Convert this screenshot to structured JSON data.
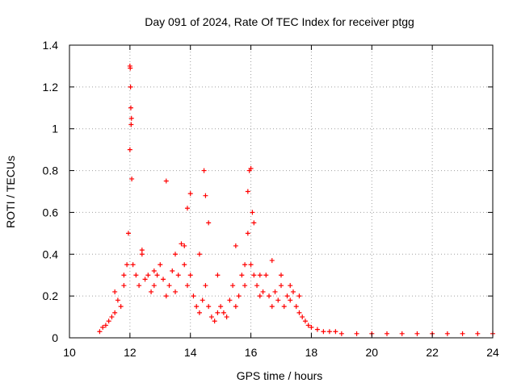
{
  "chart_data": {
    "type": "scatter",
    "title": "Day 091 of 2024, Rate Of TEC Index for receiver ptgg",
    "xlabel": "GPS time / hours",
    "ylabel": "ROTI / TECUs",
    "xlim": [
      10,
      24
    ],
    "ylim": [
      0,
      1.4
    ],
    "x_ticks": [
      "10",
      "12",
      "14",
      "16",
      "18",
      "20",
      "22",
      "24"
    ],
    "y_ticks": [
      "0",
      "0.2",
      "0.4",
      "0.6",
      "0.8",
      "1",
      "1.2",
      "1.4"
    ],
    "grid": true,
    "marker": "+",
    "series": [
      {
        "name": "ROTI",
        "color": "#ff0000",
        "x": [
          11.0,
          11.1,
          11.2,
          11.3,
          11.4,
          11.5,
          11.6,
          11.7,
          11.8,
          11.9,
          11.95,
          12.0,
          12.02,
          12.05,
          12.1,
          12.2,
          12.3,
          12.4,
          12.5,
          12.6,
          12.7,
          12.8,
          12.9,
          13.0,
          13.1,
          13.2,
          13.3,
          13.4,
          13.5,
          13.6,
          13.7,
          13.8,
          13.9,
          14.0,
          14.1,
          14.2,
          14.3,
          14.4,
          14.5,
          14.6,
          14.7,
          14.8,
          14.9,
          15.0,
          15.1,
          15.2,
          15.3,
          15.4,
          15.5,
          15.6,
          15.7,
          15.8,
          15.9,
          16.0,
          16.1,
          16.2,
          16.3,
          16.4,
          16.5,
          16.6,
          16.7,
          16.8,
          16.9,
          17.0,
          17.1,
          17.2,
          17.3,
          17.4,
          17.5,
          17.6,
          17.7,
          17.8,
          17.9,
          18.0,
          18.2,
          18.4,
          18.6,
          18.8,
          19.0,
          19.5,
          20.0,
          20.5,
          21.0,
          21.5,
          22.0,
          22.5,
          23.0,
          23.5,
          24.0,
          11.5,
          11.8,
          12.0,
          12.01,
          12.03,
          12.04,
          12.06,
          12.4,
          12.8,
          13.2,
          13.5,
          13.8,
          13.9,
          14.0,
          14.3,
          14.45,
          14.5,
          14.6,
          14.9,
          15.5,
          15.8,
          15.9,
          15.95,
          16.0,
          16.05,
          16.1,
          16.3,
          16.7,
          17.0,
          17.3,
          17.6
        ],
        "y": [
          0.03,
          0.05,
          0.06,
          0.08,
          0.1,
          0.12,
          0.18,
          0.15,
          0.25,
          0.35,
          0.5,
          1.3,
          1.2,
          1.05,
          0.35,
          0.3,
          0.25,
          0.42,
          0.28,
          0.3,
          0.22,
          0.25,
          0.3,
          0.35,
          0.28,
          0.2,
          0.25,
          0.32,
          0.22,
          0.3,
          0.45,
          0.35,
          0.25,
          0.3,
          0.2,
          0.15,
          0.12,
          0.18,
          0.25,
          0.15,
          0.1,
          0.08,
          0.12,
          0.15,
          0.12,
          0.1,
          0.18,
          0.25,
          0.15,
          0.2,
          0.3,
          0.25,
          0.5,
          0.35,
          0.3,
          0.25,
          0.2,
          0.22,
          0.3,
          0.2,
          0.15,
          0.22,
          0.18,
          0.25,
          0.15,
          0.2,
          0.18,
          0.22,
          0.15,
          0.12,
          0.1,
          0.08,
          0.06,
          0.05,
          0.04,
          0.03,
          0.03,
          0.03,
          0.02,
          0.02,
          0.02,
          0.02,
          0.02,
          0.02,
          0.02,
          0.02,
          0.02,
          0.02,
          0.02,
          0.22,
          0.3,
          0.9,
          1.29,
          1.1,
          1.02,
          0.76,
          0.4,
          0.32,
          0.75,
          0.4,
          0.44,
          0.62,
          0.69,
          0.4,
          0.8,
          0.68,
          0.55,
          0.3,
          0.44,
          0.35,
          0.7,
          0.8,
          0.81,
          0.6,
          0.55,
          0.3,
          0.37,
          0.3,
          0.25,
          0.2
        ]
      }
    ]
  }
}
